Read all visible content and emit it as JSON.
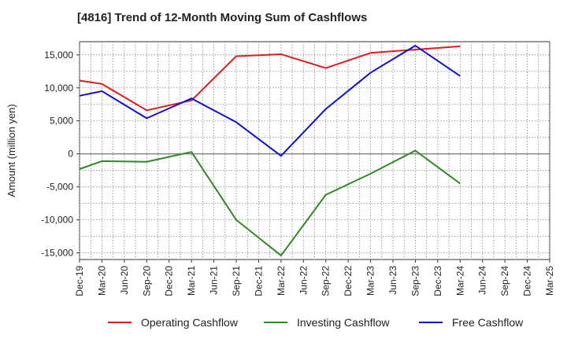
{
  "chart_data": {
    "type": "line",
    "title": "[4816]  Trend of 12-Month Moving Sum of Cashflows",
    "ylabel": "Amount (million yen)",
    "xlabel": "",
    "ylim": [
      -16000,
      17000
    ],
    "yticks": [
      15000,
      10000,
      5000,
      0,
      -5000,
      -10000,
      -15000
    ],
    "ytick_labels": [
      "15,000",
      "10,000",
      "5,000",
      "0",
      "-5,000",
      "-10,000",
      "-15,000"
    ],
    "categories": [
      "Dec-19",
      "Mar-20",
      "Jun-20",
      "Sep-20",
      "Dec-20",
      "Mar-21",
      "Jun-21",
      "Sep-21",
      "Dec-21",
      "Mar-22",
      "Jun-22",
      "Sep-22",
      "Dec-22",
      "Mar-23",
      "Jun-23",
      "Sep-23",
      "Dec-23",
      "Mar-24",
      "Jun-24",
      "Sep-24",
      "Dec-24",
      "Mar-25"
    ],
    "grid": true,
    "legend_position": "bottom",
    "series": [
      {
        "name": "Operating Cashflow",
        "color": "#e31a1c",
        "values": [
          11100,
          10600,
          null,
          6600,
          null,
          8100,
          null,
          14800,
          null,
          15100,
          null,
          13000,
          null,
          15300,
          null,
          15800,
          null,
          16300,
          null,
          null,
          null,
          null
        ]
      },
      {
        "name": "Investing Cashflow",
        "color": "#2e8b22",
        "values": [
          -2300,
          -1100,
          null,
          -1200,
          null,
          300,
          null,
          -10000,
          null,
          -15400,
          null,
          -6200,
          null,
          -3000,
          null,
          500,
          null,
          -4500,
          null,
          null,
          null,
          null
        ]
      },
      {
        "name": "Free Cashflow",
        "color": "#1010d0",
        "values": [
          8800,
          9500,
          null,
          5400,
          null,
          8400,
          null,
          4800,
          null,
          -300,
          null,
          6800,
          null,
          12300,
          null,
          16400,
          null,
          11800,
          null,
          null,
          null,
          null
        ]
      }
    ]
  }
}
